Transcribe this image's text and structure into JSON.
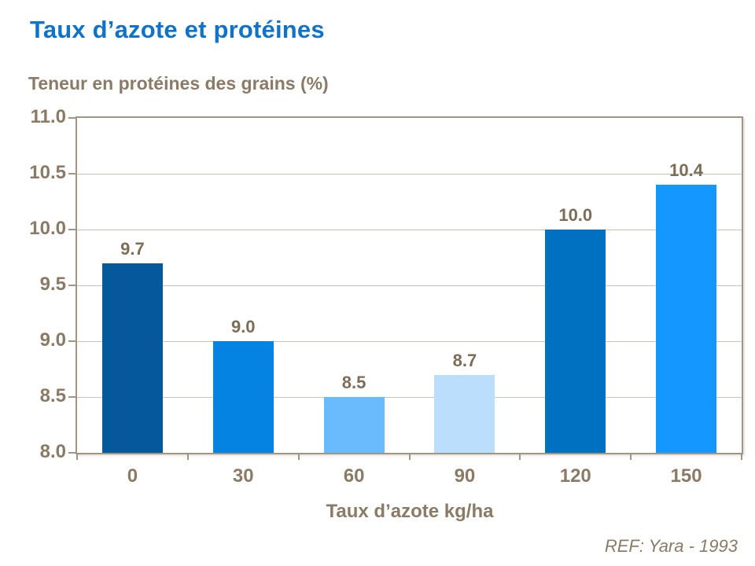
{
  "title": "Taux d’azote et protéines",
  "footer_ref": "REF: Yara - 1993",
  "colors": {
    "title_blue": "#1173c8",
    "axis_text": "#8a7a66",
    "value_text": "#7d6c58",
    "frame": "#a39584",
    "gridline": "#c9c2b8"
  },
  "chart_data": {
    "type": "bar",
    "title": "Taux d’azote et protéines",
    "xlabel": "Taux d’azote kg/ha",
    "ylabel": "Teneur en protéines des grains (%)",
    "categories": [
      "0",
      "30",
      "60",
      "90",
      "120",
      "150"
    ],
    "values": [
      9.7,
      9.0,
      8.5,
      8.7,
      10.0,
      10.4
    ],
    "value_labels": [
      "9.7",
      "9.0",
      "8.5",
      "8.7",
      "10.0",
      "10.4"
    ],
    "bar_colors": [
      "#05589b",
      "#0583e2",
      "#6abbfd",
      "#badefb",
      "#0070c0",
      "#1497fe"
    ],
    "ylim": [
      8.0,
      11.0
    ],
    "ytick_step": 0.5,
    "ytick_labels": [
      "11.0",
      "10.5",
      "10.0",
      "9.5",
      "9.0",
      "8.5",
      "8.0"
    ],
    "grid": true,
    "legend": false,
    "annotation": "REF: Yara - 1993"
  }
}
